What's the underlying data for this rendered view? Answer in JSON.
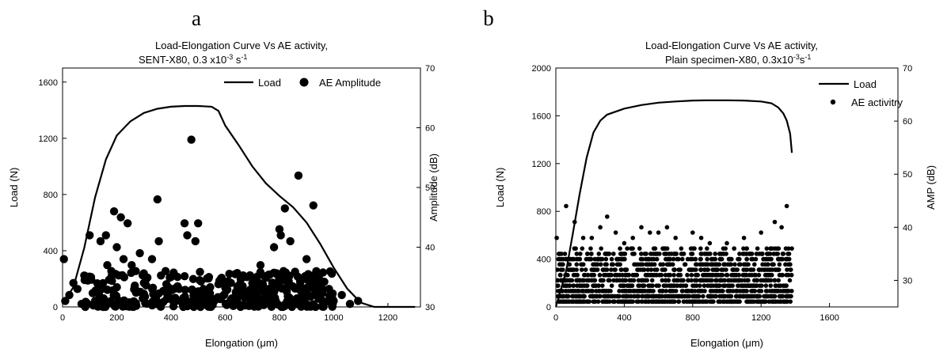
{
  "panels": [
    {
      "letter": "a",
      "title_line1": "Load-Elongation Curve Vs AE activity,",
      "title_line2": "SENT-X80, 0.3 x10",
      "title_sup1": "-3",
      "title_unit": " s",
      "title_sup2": "-1"
    },
    {
      "letter": "b",
      "title_line1": "Load-Elongation Curve Vs AE activity,",
      "title_line2": "Plain specimen-X80, 0.3x10",
      "title_sup1": "-3",
      "title_unit": "s",
      "title_sup2": "-1"
    }
  ],
  "colors": {
    "line": "#000000",
    "marker": "#000000"
  },
  "chart_data": [
    {
      "type": "line+scatter",
      "xlabel": "Elongation (μm)",
      "ylabel": "Load (N)",
      "y2label": "Amplitude (dB)",
      "xlim": [
        0,
        1320
      ],
      "ylim": [
        0,
        1700
      ],
      "y2lim": [
        30,
        70
      ],
      "xticks": [
        0,
        200,
        400,
        600,
        800,
        1000,
        1200
      ],
      "yticks": [
        0,
        400,
        800,
        1200,
        1600
      ],
      "y2ticks": [
        30,
        40,
        50,
        60,
        70
      ],
      "legend_position": "top-right",
      "series": [
        {
          "name": "Load",
          "kind": "line",
          "axis": "left",
          "x": [
            0,
            40,
            80,
            120,
            160,
            200,
            250,
            300,
            350,
            400,
            450,
            500,
            550,
            575,
            600,
            650,
            700,
            750,
            800,
            850,
            900,
            950,
            1000,
            1050,
            1100,
            1150,
            1200,
            1250,
            1300
          ],
          "y": [
            20,
            140,
            420,
            780,
            1050,
            1220,
            1320,
            1380,
            1410,
            1425,
            1430,
            1430,
            1425,
            1395,
            1290,
            1150,
            1000,
            880,
            790,
            710,
            600,
            450,
            280,
            130,
            30,
            0,
            0,
            0,
            0
          ]
        },
        {
          "name": "AE Amplitude",
          "kind": "scatter",
          "axis": "right",
          "points": [
            [
              5,
              38
            ],
            [
              10,
              31
            ],
            [
              25,
              32
            ],
            [
              40,
              34
            ],
            [
              55,
              33
            ],
            [
              70,
              30.5
            ],
            [
              100,
              42
            ],
            [
              105,
              35
            ],
            [
              120,
              31
            ],
            [
              140,
              41
            ],
            [
              160,
              42
            ],
            [
              165,
              37
            ],
            [
              180,
              36
            ],
            [
              190,
              46
            ],
            [
              200,
              40
            ],
            [
              215,
              45
            ],
            [
              225,
              38
            ],
            [
              240,
              44
            ],
            [
              255,
              37
            ],
            [
              270,
              36
            ],
            [
              285,
              39
            ],
            [
              300,
              34
            ],
            [
              330,
              38
            ],
            [
              350,
              48
            ],
            [
              355,
              41
            ],
            [
              380,
              36
            ],
            [
              400,
              35
            ],
            [
              430,
              33
            ],
            [
              450,
              44
            ],
            [
              460,
              42
            ],
            [
              475,
              58
            ],
            [
              490,
              41
            ],
            [
              500,
              44
            ],
            [
              520,
              33
            ],
            [
              540,
              35
            ],
            [
              560,
              31
            ],
            [
              600,
              34
            ],
            [
              640,
              32
            ],
            [
              680,
              35
            ],
            [
              700,
              31
            ],
            [
              730,
              37
            ],
            [
              760,
              33
            ],
            [
              780,
              40
            ],
            [
              800,
              43
            ],
            [
              805,
              42
            ],
            [
              815,
              36
            ],
            [
              820,
              46.5
            ],
            [
              840,
              41
            ],
            [
              870,
              52
            ],
            [
              900,
              38
            ],
            [
              925,
              47
            ],
            [
              940,
              34
            ],
            [
              960,
              31
            ],
            [
              1000,
              31
            ],
            [
              1030,
              32
            ],
            [
              1060,
              30.5
            ],
            [
              1090,
              31
            ]
          ],
          "dense_band_db": [
            30,
            36
          ],
          "dense_band_x": [
            80,
            1000
          ]
        }
      ]
    },
    {
      "type": "line+scatter",
      "xlabel": "Elongation (μm)",
      "ylabel": "Load (N)",
      "y2label": "AMP (dB)",
      "xlim": [
        0,
        2000
      ],
      "ylim": [
        0,
        2000
      ],
      "y2lim": [
        25,
        70
      ],
      "xticks": [
        0,
        400,
        800,
        1200,
        1600
      ],
      "yticks": [
        0,
        400,
        800,
        1200,
        1600,
        2000
      ],
      "y2ticks": [
        30,
        40,
        50,
        60,
        70
      ],
      "legend_position": "top-right",
      "series": [
        {
          "name": "Load",
          "kind": "line",
          "axis": "left",
          "x": [
            0,
            60,
            100,
            140,
            180,
            220,
            260,
            300,
            400,
            500,
            600,
            700,
            800,
            900,
            1000,
            1100,
            1200,
            1260,
            1300,
            1330,
            1350,
            1370,
            1380
          ],
          "y": [
            0,
            300,
            620,
            950,
            1250,
            1460,
            1560,
            1610,
            1660,
            1690,
            1710,
            1720,
            1728,
            1730,
            1730,
            1728,
            1720,
            1705,
            1670,
            1620,
            1560,
            1450,
            1290
          ]
        },
        {
          "name": "AE activitry",
          "kind": "scatter",
          "axis": "right",
          "points": [
            [
              5,
              38
            ],
            [
              30,
              32
            ],
            [
              60,
              44
            ],
            [
              110,
              41
            ],
            [
              160,
              38
            ],
            [
              210,
              38
            ],
            [
              260,
              40
            ],
            [
              300,
              42
            ],
            [
              350,
              39
            ],
            [
              400,
              37
            ],
            [
              450,
              38
            ],
            [
              500,
              40
            ],
            [
              550,
              39
            ],
            [
              600,
              39
            ],
            [
              650,
              40
            ],
            [
              700,
              38
            ],
            [
              800,
              39
            ],
            [
              850,
              38
            ],
            [
              900,
              37
            ],
            [
              1000,
              37
            ],
            [
              1100,
              38
            ],
            [
              1200,
              39
            ],
            [
              1280,
              41
            ],
            [
              1320,
              40
            ],
            [
              1350,
              44
            ],
            [
              1360,
              36
            ],
            [
              1370,
              33
            ]
          ],
          "dense_band_db": [
            26,
            36
          ],
          "dense_band_x": [
            10,
            1380
          ]
        }
      ]
    }
  ]
}
